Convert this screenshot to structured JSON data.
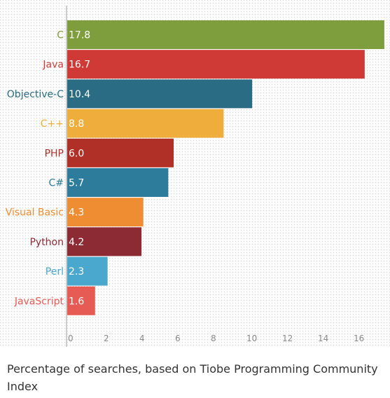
{
  "chart_data": {
    "type": "bar",
    "orientation": "horizontal",
    "categories": [
      "C",
      "Java",
      "Objective-C",
      "C++",
      "PHP",
      "C#",
      "Visual Basic",
      "Python",
      "Perl",
      "JavaScript"
    ],
    "values": [
      17.8,
      16.7,
      10.4,
      8.8,
      6.0,
      5.7,
      4.3,
      4.2,
      2.3,
      1.6
    ],
    "value_labels": [
      "17.8",
      "16.7",
      "10.4",
      "8.8",
      "6.0",
      "5.7",
      "4.3",
      "4.2",
      "2.3",
      "1.6"
    ],
    "colors": [
      "#7e9e3d",
      "#cf3a36",
      "#2a6c84",
      "#efae3c",
      "#b03027",
      "#2d7c9b",
      "#ef8d33",
      "#8c2b33",
      "#4aa7cd",
      "#e65b54"
    ],
    "xticks": [
      "0",
      "2",
      "4",
      "6",
      "8",
      "10",
      "12",
      "14",
      "16"
    ],
    "xlim": [
      0,
      18
    ],
    "title": "",
    "xlabel": "",
    "ylabel": "",
    "grid": "dotted background",
    "legend": "none"
  },
  "caption": "Percentage of searches, based on Tiobe Programming Community Index"
}
